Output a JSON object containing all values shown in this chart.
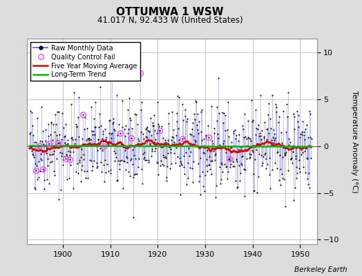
{
  "title": "OTTUMWA 1 WSW",
  "subtitle": "41.017 N, 92.433 W (United States)",
  "ylabel": "Temperature Anomaly (°C)",
  "credit": "Berkeley Earth",
  "year_start": 1893,
  "year_end": 1952,
  "ylim": [
    -10.5,
    11.5
  ],
  "yticks": [
    -10,
    -5,
    0,
    5,
    10
  ],
  "line_color": "#5555dd",
  "line_alpha": 0.55,
  "dot_color": "#111111",
  "moving_avg_color": "#dd0000",
  "trend_color": "#00bb00",
  "qc_fail_color": "#ff44ff",
  "bg_color": "#dddddd",
  "plot_bg_color": "#ffffff",
  "grid_color": "#bbbbbb",
  "seed": 42,
  "n_months": 714,
  "amplitude": 2.8
}
